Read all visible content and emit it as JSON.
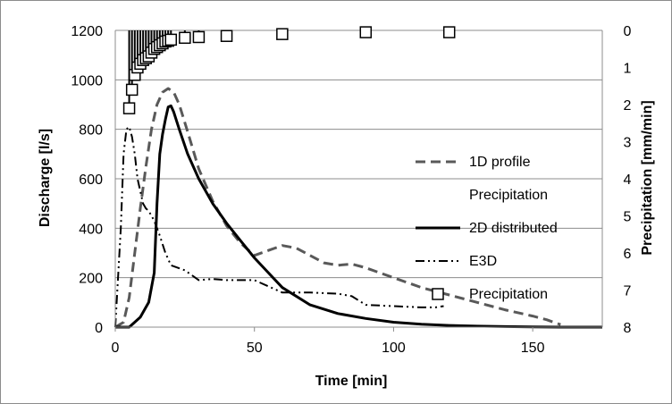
{
  "chart_data": {
    "type": "line",
    "xlabel": "Time [min]",
    "ylabel": "Discharge [l/s]",
    "y2label": "Precipitation [mm/min]",
    "xlim": [
      0,
      175
    ],
    "ylim": [
      0,
      1200
    ],
    "y2lim": [
      0,
      8
    ],
    "y2_inverted": true,
    "x_ticks": [
      "0",
      "50",
      "100",
      "150"
    ],
    "y_ticks": [
      "0",
      "200",
      "400",
      "600",
      "800",
      "1000",
      "1200"
    ],
    "y2_ticks": [
      "0",
      "1",
      "2",
      "3",
      "4",
      "5",
      "6",
      "7",
      "8"
    ],
    "grid": "horizontal",
    "legend_position": "right",
    "legend": [
      {
        "label": "1D profile",
        "style": "dashed-gray"
      },
      {
        "label": "Precipitation",
        "style": "none"
      },
      {
        "label": "2D distributed",
        "style": "solid-black"
      },
      {
        "label": "E3D",
        "style": "dash-dot-dot"
      },
      {
        "label": "Precipitation",
        "style": "open-square"
      }
    ],
    "series": [
      {
        "name": "1D profile",
        "axis": "left",
        "color": "#595959",
        "x": [
          0,
          3,
          5,
          7,
          9,
          11,
          13,
          15,
          17,
          19,
          21,
          23,
          26,
          30,
          35,
          40,
          45,
          50,
          55,
          60,
          65,
          70,
          75,
          80,
          85,
          90,
          100,
          110,
          120,
          130,
          140,
          150,
          155,
          160
        ],
        "y": [
          0,
          20,
          120,
          300,
          480,
          650,
          800,
          900,
          950,
          965,
          950,
          900,
          790,
          640,
          510,
          410,
          340,
          290,
          310,
          330,
          320,
          290,
          260,
          250,
          255,
          240,
          200,
          160,
          130,
          100,
          70,
          45,
          30,
          10
        ]
      },
      {
        "name": "2D distributed",
        "axis": "left",
        "color": "#000000",
        "x": [
          0,
          5,
          9,
          12,
          14,
          15,
          16,
          17,
          18,
          19,
          20,
          21,
          23,
          26,
          30,
          35,
          40,
          45,
          50,
          55,
          60,
          70,
          80,
          90,
          100,
          110,
          120,
          130,
          140,
          150,
          160,
          175
        ],
        "y": [
          0,
          0,
          40,
          100,
          220,
          500,
          700,
          780,
          840,
          890,
          895,
          870,
          800,
          700,
          600,
          500,
          420,
          350,
          280,
          220,
          160,
          90,
          55,
          35,
          20,
          12,
          7,
          4,
          2,
          1,
          0,
          0
        ],
        "style": "solid"
      },
      {
        "name": "E3D",
        "axis": "left",
        "color": "#000000",
        "x": [
          0,
          2,
          3,
          4,
          5,
          6,
          7,
          8,
          9,
          10,
          11,
          12,
          14,
          16,
          18,
          20,
          25,
          30,
          35,
          40,
          50,
          60,
          70,
          80,
          85,
          90,
          100,
          110,
          115,
          118
        ],
        "y": [
          0,
          400,
          700,
          800,
          810,
          770,
          700,
          600,
          550,
          500,
          480,
          470,
          430,
          370,
          300,
          250,
          230,
          190,
          195,
          190,
          190,
          140,
          140,
          135,
          125,
          90,
          85,
          80,
          80,
          85
        ],
        "style": "dash-dot-dot"
      },
      {
        "name": "Precipitation",
        "axis": "right",
        "color": "#000000",
        "marker": "square",
        "x": [
          5,
          6,
          7,
          8,
          9,
          10,
          11,
          12,
          13,
          14,
          15,
          16,
          17,
          18,
          19,
          20,
          25,
          30,
          40,
          60,
          90,
          120
        ],
        "y": [
          2.1,
          1.6,
          1.2,
          1.0,
          0.9,
          0.8,
          0.75,
          0.7,
          0.6,
          0.5,
          0.45,
          0.4,
          0.35,
          0.3,
          0.28,
          0.25,
          0.2,
          0.18,
          0.15,
          0.1,
          0.05,
          0.05
        ]
      }
    ]
  }
}
